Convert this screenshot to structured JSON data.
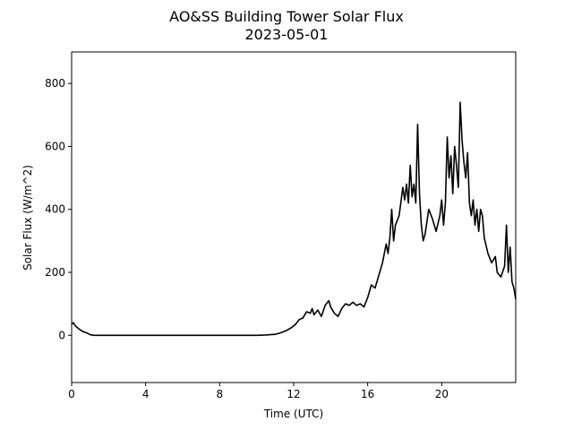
{
  "chart_data": {
    "type": "line",
    "title": "AO&SS Building Tower Solar Flux",
    "subtitle": "2023-05-01",
    "xlabel": "Time (UTC)",
    "ylabel": "Solar Flux (W/m^2)",
    "color": "#000000",
    "x": [
      0,
      0.1,
      0.2,
      0.4,
      0.6,
      0.8,
      1.0,
      1.2,
      2,
      4,
      6,
      8,
      10,
      10.5,
      11,
      11.3,
      11.6,
      11.9,
      12.1,
      12.3,
      12.5,
      12.7,
      12.9,
      13.0,
      13.1,
      13.3,
      13.5,
      13.7,
      13.9,
      14.0,
      14.2,
      14.4,
      14.6,
      14.8,
      15.0,
      15.2,
      15.4,
      15.6,
      15.8,
      16.0,
      16.2,
      16.4,
      16.6,
      16.8,
      17.0,
      17.1,
      17.2,
      17.3,
      17.4,
      17.5,
      17.7,
      17.9,
      18.0,
      18.1,
      18.2,
      18.3,
      18.4,
      18.5,
      18.6,
      18.7,
      18.8,
      18.9,
      19.0,
      19.1,
      19.3,
      19.5,
      19.7,
      19.9,
      20.0,
      20.1,
      20.2,
      20.3,
      20.4,
      20.5,
      20.6,
      20.7,
      20.8,
      20.9,
      21.0,
      21.1,
      21.2,
      21.3,
      21.4,
      21.5,
      21.6,
      21.7,
      21.8,
      21.9,
      22.0,
      22.1,
      22.2,
      22.3,
      22.5,
      22.7,
      22.9,
      23.0,
      23.2,
      23.4,
      23.5,
      23.6,
      23.7,
      23.8,
      23.9,
      24.0
    ],
    "values": [
      35,
      40,
      30,
      20,
      12,
      8,
      2,
      0,
      0,
      0,
      0,
      0,
      0,
      1,
      3,
      8,
      15,
      25,
      35,
      50,
      55,
      75,
      70,
      85,
      65,
      80,
      60,
      95,
      110,
      90,
      70,
      60,
      85,
      100,
      95,
      105,
      95,
      100,
      90,
      120,
      160,
      150,
      190,
      230,
      290,
      260,
      310,
      400,
      300,
      350,
      380,
      470,
      430,
      480,
      420,
      540,
      440,
      480,
      420,
      670,
      450,
      350,
      300,
      320,
      400,
      370,
      330,
      380,
      430,
      350,
      420,
      630,
      500,
      570,
      450,
      600,
      540,
      470,
      740,
      620,
      550,
      500,
      580,
      420,
      380,
      430,
      350,
      400,
      330,
      400,
      380,
      310,
      260,
      230,
      250,
      200,
      185,
      220,
      350,
      200,
      280,
      170,
      150,
      115
    ],
    "xlim": [
      0,
      24
    ],
    "ylim": [
      -150,
      900
    ],
    "xticks": [
      0,
      4,
      8,
      12,
      16,
      20
    ],
    "yticks": [
      0,
      200,
      400,
      600,
      800
    ]
  }
}
